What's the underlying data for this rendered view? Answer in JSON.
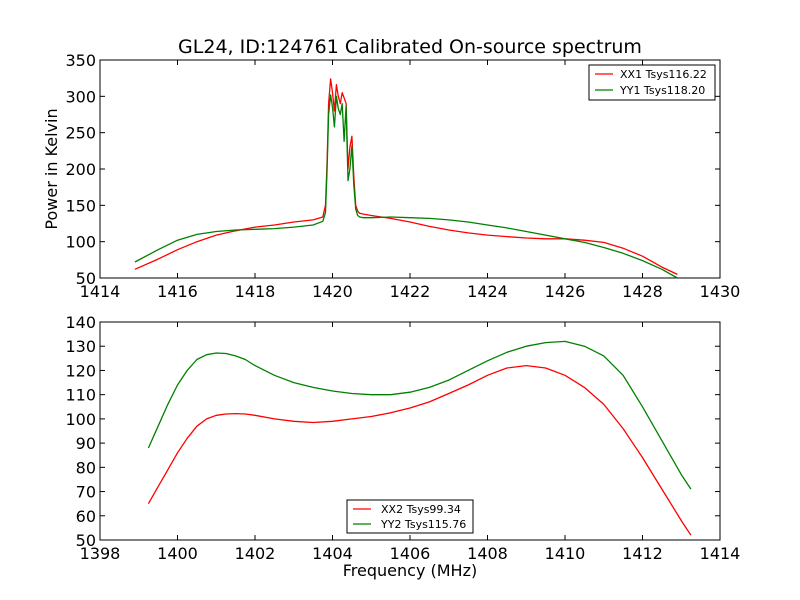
{
  "figure": {
    "title": "GL24, ID:124761 Calibrated On-source spectrum"
  },
  "chart_data": [
    {
      "type": "line",
      "title": "GL24, ID:124761 Calibrated On-source spectrum",
      "xlabel": "",
      "ylabel": "Power in Kelvin",
      "xlim": [
        1414,
        1430
      ],
      "ylim": [
        50,
        350
      ],
      "xticks": [
        "1414",
        "1416",
        "1418",
        "1420",
        "1422",
        "1424",
        "1426",
        "1428",
        "1430"
      ],
      "yticks": [
        "50",
        "100",
        "150",
        "200",
        "250",
        "300",
        "350"
      ],
      "grid": false,
      "legend_position": "top-right",
      "series": [
        {
          "name": "XX1 Tsys116.22",
          "color": "#ff0000",
          "x": [
            1414.9,
            1415.5,
            1416.0,
            1416.5,
            1417.0,
            1417.5,
            1418.0,
            1418.5,
            1419.0,
            1419.5,
            1419.75,
            1419.82,
            1419.86,
            1419.9,
            1419.95,
            1420.0,
            1420.05,
            1420.1,
            1420.15,
            1420.2,
            1420.25,
            1420.3,
            1420.35,
            1420.4,
            1420.45,
            1420.5,
            1420.55,
            1420.6,
            1420.65,
            1420.7,
            1420.8,
            1421.0,
            1421.5,
            1422.0,
            1422.5,
            1423.0,
            1423.5,
            1424.0,
            1424.5,
            1425.0,
            1425.5,
            1426.0,
            1426.5,
            1427.0,
            1427.5,
            1428.0,
            1428.5,
            1428.9
          ],
          "values": [
            62,
            76,
            89,
            100,
            109,
            115,
            120,
            123,
            127,
            130,
            134,
            150,
            210,
            290,
            324,
            305,
            280,
            316,
            300,
            290,
            305,
            298,
            290,
            200,
            230,
            245,
            190,
            150,
            142,
            139,
            138,
            136,
            132,
            127,
            121,
            116,
            112,
            109,
            107,
            105,
            104,
            104,
            102,
            99,
            91,
            80,
            65,
            55
          ]
        },
        {
          "name": "YY1 Tsys118.20",
          "color": "#008000",
          "x": [
            1414.9,
            1415.5,
            1416.0,
            1416.5,
            1417.0,
            1417.5,
            1418.0,
            1418.5,
            1419.0,
            1419.5,
            1419.75,
            1419.82,
            1419.86,
            1419.9,
            1419.95,
            1420.0,
            1420.05,
            1420.1,
            1420.15,
            1420.2,
            1420.25,
            1420.3,
            1420.35,
            1420.4,
            1420.45,
            1420.5,
            1420.55,
            1420.6,
            1420.65,
            1420.7,
            1420.8,
            1421.0,
            1421.5,
            1422.0,
            1422.5,
            1423.0,
            1423.5,
            1424.0,
            1424.5,
            1425.0,
            1425.5,
            1426.0,
            1426.5,
            1427.0,
            1427.5,
            1428.0,
            1428.5,
            1428.9
          ],
          "values": [
            72,
            89,
            102,
            110,
            114,
            116,
            117,
            118,
            120,
            123,
            128,
            140,
            200,
            275,
            302,
            285,
            258,
            300,
            283,
            275,
            290,
            238,
            287,
            184,
            200,
            232,
            178,
            145,
            136,
            134,
            133,
            133,
            134,
            133,
            132,
            130,
            127,
            123,
            119,
            114,
            109,
            104,
            99,
            92,
            84,
            74,
            62,
            50
          ]
        }
      ]
    },
    {
      "type": "line",
      "title": "",
      "xlabel": "Frequency (MHz)",
      "ylabel": "",
      "xlim": [
        1398,
        1414
      ],
      "ylim": [
        50,
        140
      ],
      "xticks": [
        "1398",
        "1400",
        "1402",
        "1404",
        "1406",
        "1408",
        "1410",
        "1412",
        "1414"
      ],
      "yticks": [
        "50",
        "60",
        "70",
        "80",
        "90",
        "100",
        "110",
        "120",
        "130",
        "140"
      ],
      "grid": false,
      "legend_position": "bottom-center",
      "series": [
        {
          "name": "XX2 Tsys99.34",
          "color": "#ff0000",
          "x": [
            1399.25,
            1399.5,
            1399.75,
            1400.0,
            1400.25,
            1400.5,
            1400.75,
            1401.0,
            1401.25,
            1401.5,
            1401.75,
            1402.0,
            1402.5,
            1403.0,
            1403.5,
            1404.0,
            1404.5,
            1405.0,
            1405.5,
            1406.0,
            1406.5,
            1407.0,
            1407.5,
            1408.0,
            1408.5,
            1409.0,
            1409.5,
            1410.0,
            1410.5,
            1411.0,
            1411.5,
            1412.0,
            1412.5,
            1413.0,
            1413.25
          ],
          "values": [
            65,
            72,
            79,
            86,
            92,
            97,
            100,
            101.5,
            102,
            102.2,
            102,
            101.5,
            100,
            99,
            98.5,
            99,
            100,
            101,
            102.5,
            104.5,
            107,
            110.5,
            114,
            118,
            121,
            122,
            121,
            118,
            113,
            106,
            96,
            84,
            71,
            58,
            52
          ]
        },
        {
          "name": "YY2 Tsys115.76",
          "color": "#008000",
          "x": [
            1399.25,
            1399.5,
            1399.75,
            1400.0,
            1400.25,
            1400.5,
            1400.75,
            1401.0,
            1401.25,
            1401.5,
            1401.75,
            1402.0,
            1402.5,
            1403.0,
            1403.5,
            1404.0,
            1404.5,
            1405.0,
            1405.5,
            1406.0,
            1406.5,
            1407.0,
            1407.5,
            1408.0,
            1408.5,
            1409.0,
            1409.5,
            1410.0,
            1410.5,
            1411.0,
            1411.5,
            1412.0,
            1412.5,
            1413.0,
            1413.25
          ],
          "values": [
            88,
            97,
            106,
            114,
            120,
            124.5,
            126.5,
            127.2,
            127,
            126,
            124.5,
            122,
            118,
            115,
            113,
            111.5,
            110.5,
            110,
            110,
            111,
            113,
            116,
            120,
            124,
            127.5,
            130,
            131.5,
            132,
            130,
            126,
            118,
            105,
            91,
            77,
            71
          ]
        }
      ]
    }
  ]
}
